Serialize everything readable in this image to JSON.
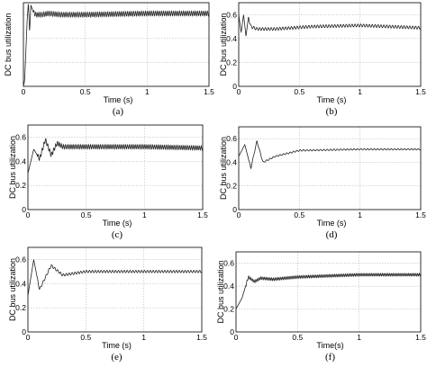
{
  "chart_data": [
    {
      "panel": "(a)",
      "type": "line",
      "xlabel": "Time (s)",
      "ylabel": "DC bus utilization",
      "xlim": [
        0,
        1.5
      ],
      "ylim": [
        0,
        0.7
      ],
      "xticks": [
        "0",
        "0.5",
        "1",
        "1.5"
      ],
      "yticks": [],
      "grid": true,
      "series": [
        {
          "x": [
            0,
            0.01,
            0.02,
            0.03,
            0.04,
            0.05,
            0.06,
            0.08,
            0.1,
            0.15,
            0.2,
            0.3,
            0.5,
            1.0,
            1.5
          ],
          "y": [
            0.0,
            0.05,
            0.3,
            0.55,
            0.7,
            0.45,
            0.68,
            0.62,
            0.6,
            0.6,
            0.61,
            0.6,
            0.6,
            0.61,
            0.61
          ]
        }
      ]
    },
    {
      "panel": "(b)",
      "type": "line",
      "xlabel": "Time (s)",
      "ylabel": "DC bus utilization",
      "xlim": [
        0,
        1.5
      ],
      "ylim": [
        0,
        0.7
      ],
      "xticks": [
        "0",
        "0.5",
        "1",
        "1.5"
      ],
      "yticks": [
        "0",
        "0.2",
        "0.4",
        "0.6"
      ],
      "grid": true,
      "series": [
        {
          "x": [
            0,
            0.02,
            0.04,
            0.06,
            0.08,
            0.1,
            0.15,
            0.3,
            0.6,
            1.0,
            1.5
          ],
          "y": [
            0.6,
            0.45,
            0.6,
            0.42,
            0.58,
            0.5,
            0.48,
            0.48,
            0.5,
            0.51,
            0.49
          ]
        }
      ]
    },
    {
      "panel": "(c)",
      "type": "line",
      "xlabel": "Time (s)",
      "ylabel": "DC bus utilization",
      "xlim": [
        0,
        1.5
      ],
      "ylim": [
        0,
        0.7
      ],
      "xticks": [
        "0",
        "0.5",
        "1",
        "1.5"
      ],
      "yticks": [
        "0",
        "0.2",
        "0.4",
        "0.6"
      ],
      "grid": true,
      "series": [
        {
          "x": [
            0,
            0.05,
            0.1,
            0.15,
            0.2,
            0.25,
            0.3,
            0.5,
            1.0,
            1.5
          ],
          "y": [
            0.3,
            0.5,
            0.42,
            0.58,
            0.45,
            0.55,
            0.52,
            0.52,
            0.52,
            0.51
          ]
        }
      ]
    },
    {
      "panel": "(d)",
      "type": "line",
      "xlabel": "Time (s)",
      "ylabel": "DC bus utilization",
      "xlim": [
        0,
        1.5
      ],
      "ylim": [
        0,
        0.7
      ],
      "xticks": [
        "0",
        "0.5",
        "1",
        "1.5"
      ],
      "yticks": [
        "0",
        "0.2",
        "0.4",
        "0.6"
      ],
      "grid": true,
      "series": [
        {
          "x": [
            0,
            0.05,
            0.1,
            0.15,
            0.2,
            0.3,
            0.5,
            1.0,
            1.5
          ],
          "y": [
            0.45,
            0.55,
            0.35,
            0.58,
            0.4,
            0.45,
            0.5,
            0.51,
            0.51
          ]
        }
      ]
    },
    {
      "panel": "(e)",
      "type": "line",
      "xlabel": "Time (s)",
      "ylabel": "DC bus utilization",
      "xlim": [
        0,
        1.5
      ],
      "ylim": [
        0,
        0.7
      ],
      "xticks": [
        "0",
        "0.5",
        "1",
        "1.5"
      ],
      "yticks": [
        "0",
        "0.2",
        "0.4",
        "0.6"
      ],
      "grid": true,
      "series": [
        {
          "x": [
            0,
            0.05,
            0.1,
            0.2,
            0.3,
            0.5,
            1.0,
            1.5
          ],
          "y": [
            0.3,
            0.6,
            0.35,
            0.55,
            0.47,
            0.5,
            0.5,
            0.5
          ]
        }
      ]
    },
    {
      "panel": "(f)",
      "type": "line",
      "xlabel": "Time(s)",
      "ylabel": "DC bus utilization",
      "xlim": [
        0,
        1.5
      ],
      "ylim": [
        0,
        0.7
      ],
      "xticks": [
        "0",
        "0.5",
        "1",
        "1.5"
      ],
      "yticks": [
        "0",
        "0.2",
        "0.4",
        "0.6"
      ],
      "grid": true,
      "series": [
        {
          "x": [
            0,
            0.05,
            0.1,
            0.15,
            0.2,
            0.3,
            0.5,
            1.0,
            1.5
          ],
          "y": [
            0.2,
            0.3,
            0.48,
            0.44,
            0.47,
            0.46,
            0.48,
            0.5,
            0.5
          ]
        }
      ]
    }
  ]
}
